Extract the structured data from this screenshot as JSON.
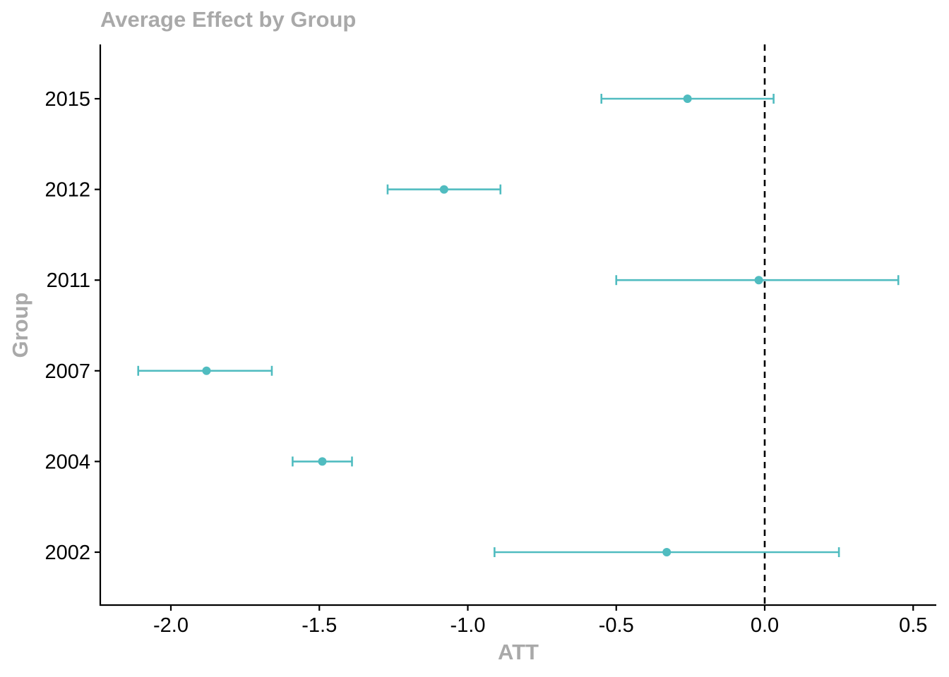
{
  "chart_data": {
    "type": "errorbar",
    "title": "Average Effect by Group",
    "xlabel": "ATT",
    "ylabel": "Group",
    "xlim": [
      -2.24,
      0.58
    ],
    "x_ticks": [
      -2.0,
      -1.5,
      -1.0,
      -0.5,
      0.0,
      0.5
    ],
    "x_tick_labels": [
      "-2.0",
      "-1.5",
      "-1.0",
      "-0.5",
      "0.0",
      "0.5"
    ],
    "categories": [
      "2002",
      "2004",
      "2007",
      "2011",
      "2012",
      "2015"
    ],
    "estimates": [
      -0.33,
      -1.49,
      -1.88,
      -0.02,
      -1.08,
      -0.26
    ],
    "lower": [
      -0.91,
      -1.59,
      -2.11,
      -0.5,
      -1.27,
      -0.55
    ],
    "upper": [
      0.25,
      -1.39,
      -1.66,
      0.45,
      -0.89,
      0.03
    ],
    "reference_line": 0.0,
    "color": "#50BCC0",
    "grid": false
  }
}
